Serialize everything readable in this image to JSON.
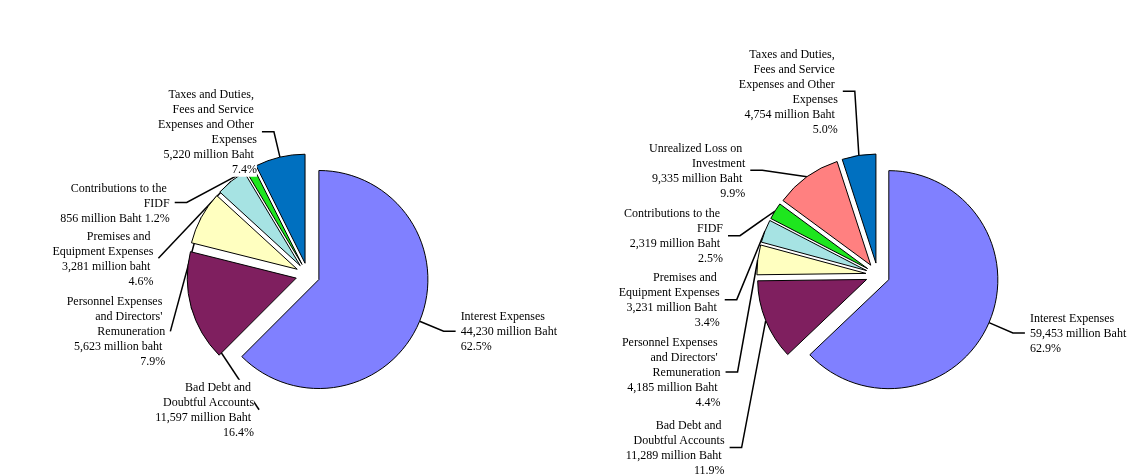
{
  "chart_data": [
    {
      "type": "pie",
      "categories": [
        "Interest Expenses",
        "Bad Debt and Doubtful Accounts",
        "Personnel Expenses and Directors' Remuneration",
        "Premises and Equipment Expenses",
        "Contributions to the FIDF",
        "Taxes and Duties, Fees and Service Expenses and Other Expenses"
      ],
      "values": [
        62.5,
        16.4,
        7.9,
        4.6,
        1.2,
        7.4
      ],
      "value_labels": [
        "44,230 million Baht 62.5%",
        "11,597 million Baht 16.4%",
        "5,623 million baht 7.9%",
        "3,281 million baht 4.6%",
        "856 million Baht 1.2%",
        "5,220 million Baht 7.4%"
      ],
      "colors": [
        "#8080ff",
        "#7f1f5f",
        "#ffffc0",
        "#a6e3e3",
        "#1ee61e",
        "#0070c0"
      ],
      "legend": false
    },
    {
      "type": "pie",
      "categories": [
        "Interest Expenses",
        "Bad Debt and Doubtful Accounts",
        "Personnel Expenses and Directors' Remuneration",
        "Premises and Equipment Expenses",
        "Contributions to the FIDF",
        "Unrealized Loss on Investment",
        "Taxes and Duties, Fees and Service Expenses and Other Expenses"
      ],
      "values": [
        62.9,
        11.9,
        4.4,
        3.4,
        2.5,
        9.9,
        5.0
      ],
      "value_labels": [
        "59,453 million Baht 62.9%",
        "11,289 million Baht 11.9%",
        "4,185 million Baht 4.4%",
        "3,231 million Baht 3.4%",
        "2,319 million Baht 2.5%",
        "9,335 million Baht 9.9%",
        "4,754 million Baht 5.0%"
      ],
      "colors": [
        "#8080ff",
        "#7f1f5f",
        "#ffffc0",
        "#a6e3e3",
        "#1ee61e",
        "#ff8080",
        "#0070c0"
      ],
      "legend": false
    }
  ]
}
